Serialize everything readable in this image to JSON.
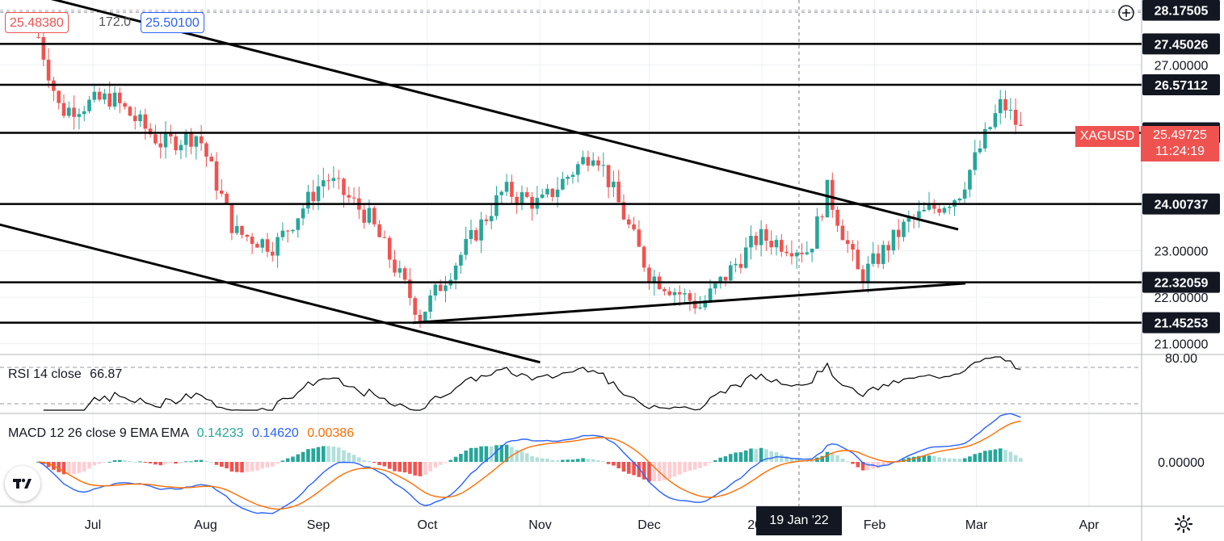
{
  "top_readout": {
    "bid": "25.48380",
    "spread": "172.0",
    "ask": "25.50100",
    "bid_color": "#ef5350",
    "ask_color": "#2962ff"
  },
  "symbol_tag": {
    "symbol": "XAGUSD",
    "price": "25.49725",
    "countdown": "11:24:19",
    "color": "#ef5350"
  },
  "time_tag": "19 Jan '22",
  "indicators": {
    "rsi": {
      "label": "RSI 14 close",
      "value": "66.87",
      "tick": "80.00"
    },
    "macd": {
      "label": "MACD 12 26 close 9 EMA EMA",
      "hist": "0.14233",
      "macd": "0.14620",
      "signal": "0.00386",
      "tick": "0.00000",
      "hist_color": "#26a69a",
      "macd_color": "#2962ff",
      "signal_color": "#ff6d00"
    }
  },
  "chart_data": {
    "type": "candlestick",
    "symbol": "XAGUSD",
    "up_color": "#26a69a",
    "down_color": "#ef5350",
    "price_axis_ticks": [
      "27.00000",
      "23.00000",
      "22.00000",
      "21.00000"
    ],
    "horizontal_levels": [
      "28.17505",
      "27.45026",
      "26.57112",
      "25.53848",
      "24.00737",
      "22.32059",
      "21.45253"
    ],
    "x_axis_labels": [
      "Jul",
      "Aug",
      "Sep",
      "Oct",
      "Nov",
      "Dec",
      "2022",
      "Feb",
      "Mar",
      "Apr"
    ],
    "ohlc_anchor_closes": [
      {
        "date": "2021-06-16",
        "close": 27.6
      },
      {
        "date": "2021-06-22",
        "close": 26.0
      },
      {
        "date": "2021-07-06",
        "close": 26.3
      },
      {
        "date": "2021-07-20",
        "close": 25.3
      },
      {
        "date": "2021-07-30",
        "close": 25.5
      },
      {
        "date": "2021-08-09",
        "close": 23.4
      },
      {
        "date": "2021-08-20",
        "close": 23.1
      },
      {
        "date": "2021-09-03",
        "close": 24.6
      },
      {
        "date": "2021-09-15",
        "close": 23.7
      },
      {
        "date": "2021-09-29",
        "close": 21.6
      },
      {
        "date": "2021-10-22",
        "close": 24.3
      },
      {
        "date": "2021-11-01",
        "close": 24.0
      },
      {
        "date": "2021-11-16",
        "close": 25.2
      },
      {
        "date": "2021-12-01",
        "close": 22.5
      },
      {
        "date": "2021-12-15",
        "close": 21.8
      },
      {
        "date": "2021-12-31",
        "close": 23.3
      },
      {
        "date": "2022-01-14",
        "close": 23.0
      },
      {
        "date": "2022-01-19",
        "close": 24.3
      },
      {
        "date": "2022-01-28",
        "close": 22.4
      },
      {
        "date": "2022-02-10",
        "close": 23.6
      },
      {
        "date": "2022-02-24",
        "close": 24.2
      },
      {
        "date": "2022-03-08",
        "close": 26.2
      },
      {
        "date": "2022-03-14",
        "close": 25.5
      }
    ],
    "trendlines": [
      {
        "from": {
          "date": "2021-06-13",
          "price": 28.55
        },
        "to": {
          "date": "2022-02-24",
          "price": 23.46
        }
      },
      {
        "from": {
          "date": "2021-06-01",
          "price": 23.65
        },
        "to": {
          "date": "2021-11-01",
          "price": 20.6
        }
      },
      {
        "from": {
          "date": "2021-09-27",
          "price": 21.45
        },
        "to": {
          "date": "2022-02-26",
          "price": 22.3
        }
      }
    ]
  }
}
